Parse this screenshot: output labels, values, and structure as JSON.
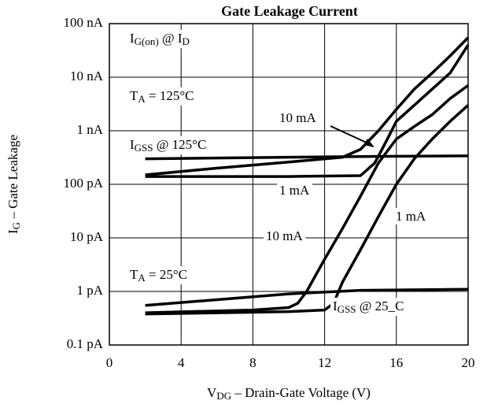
{
  "chart_data": {
    "type": "line",
    "title": "Gate Leakage Current",
    "xlabel": [
      "V",
      "DG",
      " – Drain-Gate Voltage (V)"
    ],
    "ylabel": [
      "I",
      "G",
      " – Gate Leakage"
    ],
    "log_y": true,
    "grid": true,
    "color": "#000000",
    "xlim": [
      0,
      20
    ],
    "xticks": [
      0,
      4,
      8,
      12,
      16,
      20
    ],
    "ylim": [
      0.1,
      100000
    ],
    "yticks": [
      {
        "value": 0.1,
        "label": "0.1 pA"
      },
      {
        "value": 1,
        "label": "1 pA"
      },
      {
        "value": 10,
        "label": "10 pA"
      },
      {
        "value": 100,
        "label": "100 pA"
      },
      {
        "value": 1000,
        "label": "1 nA"
      },
      {
        "value": 10000,
        "label": "10 nA"
      },
      {
        "value": 100000,
        "label": "100 nA"
      }
    ],
    "series": [
      {
        "x": [
          2,
          6,
          10,
          14,
          20
        ],
        "values": [
          300,
          310,
          320,
          330,
          340
        ]
      },
      {
        "x": [
          2,
          6,
          10,
          13,
          14,
          15,
          16,
          17,
          18,
          19,
          20
        ],
        "values": [
          150,
          200,
          260,
          320,
          450,
          1000,
          2500,
          6000,
          12000,
          25000,
          55000
        ]
      },
      {
        "x": [
          2,
          10,
          14,
          14.8,
          15.5,
          16,
          17,
          18,
          19,
          20
        ],
        "values": [
          140,
          140,
          145,
          250,
          700,
          1500,
          3000,
          6000,
          12000,
          40000
        ]
      },
      {
        "x": [
          2,
          8,
          10,
          10.5,
          11,
          12,
          13,
          14,
          15,
          16,
          17,
          18,
          19,
          20
        ],
        "values": [
          0.4,
          0.45,
          0.5,
          0.6,
          1,
          4,
          15,
          60,
          250,
          700,
          1200,
          2000,
          4000,
          7000
        ]
      },
      {
        "x": [
          2,
          10,
          12,
          12.5,
          13,
          14,
          15,
          16,
          17,
          18,
          19,
          20
        ],
        "values": [
          0.38,
          0.42,
          0.45,
          0.6,
          1.5,
          6,
          25,
          100,
          300,
          700,
          1500,
          3000
        ]
      },
      {
        "x": [
          2,
          6,
          10,
          14,
          20
        ],
        "values": [
          0.55,
          0.7,
          0.9,
          1.05,
          1.1
        ]
      }
    ],
    "annotations": [
      [
        "I",
        "G(on)",
        " @ I",
        "D"
      ],
      [
        "T",
        "A",
        " = 125°C"
      ],
      [
        "10 mA"
      ],
      [
        "I",
        "GSS",
        " @ 125°C"
      ],
      [
        "1 mA"
      ],
      [
        "1 mA"
      ],
      [
        "10 mA"
      ],
      [
        "T",
        "A",
        " = 25°C"
      ],
      [
        "I",
        "GSS",
        " @ 25_C"
      ]
    ]
  }
}
